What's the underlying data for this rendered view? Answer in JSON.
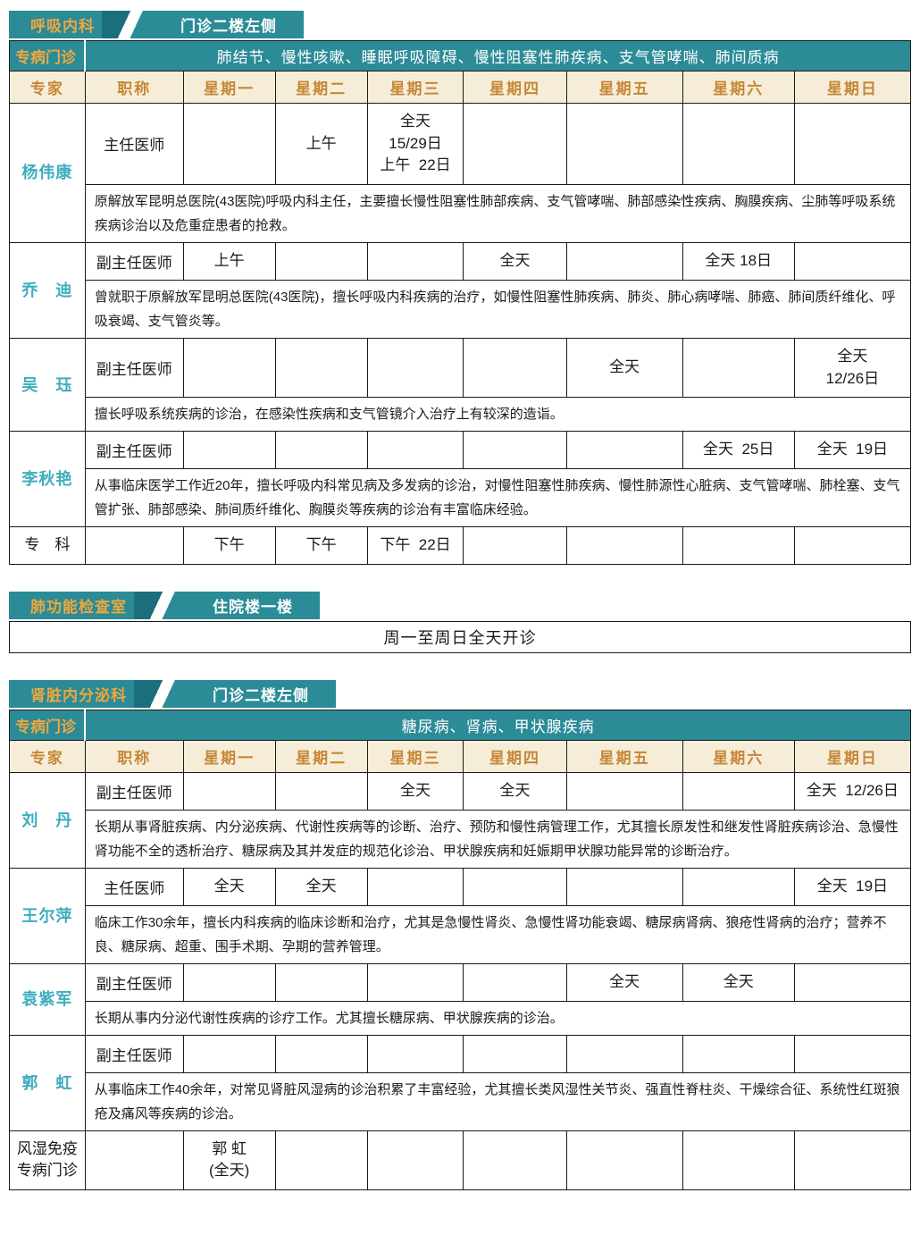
{
  "colors": {
    "teal": "#2b8b97",
    "teal_dark": "#1b6e7b",
    "gold_on_teal": "#efa73f",
    "gold_on_cream": "#c68737",
    "cream_header": "#f6edd9",
    "doctor_name_teal": "#3eadbd",
    "border": "#1a1a1a"
  },
  "sections": [
    {
      "type": "schedule",
      "tab": {
        "department": "呼吸内科",
        "location": "门诊二楼左侧"
      },
      "special_clinic": {
        "label": "专病门诊",
        "text": "肺结节、慢性咳嗽、睡眠呼吸障碍、慢性阻塞性肺疾病、支气管哮喘、肺间质病"
      },
      "columns": [
        "专家",
        "职称",
        "星期一",
        "星期二",
        "星期三",
        "星期四",
        "星期五",
        "星期六",
        "星期日"
      ],
      "rows": [
        {
          "name": "杨伟康",
          "title": "主任医师",
          "days": [
            "",
            "上午",
            "全天\n15/29日\n上午  22日",
            "",
            "",
            "",
            ""
          ],
          "bio": "原解放军昆明总医院(43医院)呼吸内科主任，主要擅长慢性阻塞性肺部疾病、支气管哮喘、肺部感染性疾病、胸膜疾病、尘肺等呼吸系统疾病诊治以及危重症患者的抢救。"
        },
        {
          "name": "乔　迪",
          "title": "副主任医师",
          "days": [
            "上午",
            "",
            "",
            "全天",
            "",
            "全天 18日",
            ""
          ],
          "bio": "曾就职于原解放军昆明总医院(43医院)，擅长呼吸内科疾病的治疗，如慢性阻塞性肺疾病、肺炎、肺心病哮喘、肺癌、肺间质纤维化、呼吸衰竭、支气管炎等。"
        },
        {
          "name": "吴　珏",
          "title": "副主任医师",
          "days": [
            "",
            "",
            "",
            "",
            "全天",
            "",
            "全天\n12/26日"
          ],
          "bio": "擅长呼吸系统疾病的诊治，在感染性疾病和支气管镜介入治疗上有较深的造诣。"
        },
        {
          "name": "李秋艳",
          "title": "副主任医师",
          "days": [
            "",
            "",
            "",
            "",
            "",
            "全天  25日",
            "全天  19日"
          ],
          "bio": "从事临床医学工作近20年，擅长呼吸内科常见病及多发病的诊治，对慢性阻塞性肺疾病、慢性肺源性心脏病、支气管哮喘、肺栓塞、支气管扩张、肺部感染、肺间质纤维化、胸膜炎等疾病的诊治有丰富临床经验。"
        },
        {
          "name": "专　科",
          "plain": true,
          "title": "",
          "days": [
            "下午",
            "下午",
            "下午  22日",
            "",
            "",
            "",
            ""
          ],
          "bio": null
        }
      ]
    },
    {
      "type": "notice",
      "tab": {
        "department": "肺功能检查室",
        "location": "住院楼一楼"
      },
      "notice": "周一至周日全天开诊"
    },
    {
      "type": "schedule",
      "tab": {
        "department": "肾脏内分泌科",
        "location": "门诊二楼左侧"
      },
      "special_clinic": {
        "label": "专病门诊",
        "text": "糖尿病、肾病、甲状腺疾病"
      },
      "columns": [
        "专家",
        "职称",
        "星期一",
        "星期二",
        "星期三",
        "星期四",
        "星期五",
        "星期六",
        "星期日"
      ],
      "rows": [
        {
          "name": "刘　丹",
          "title": "副主任医师",
          "days": [
            "",
            "",
            "全天",
            "全天",
            "",
            "",
            "全天  12/26日"
          ],
          "bio": "长期从事肾脏疾病、内分泌疾病、代谢性疾病等的诊断、治疗、预防和慢性病管理工作，尤其擅长原发性和继发性肾脏疾病诊治、急慢性肾功能不全的透析治疗、糖尿病及其并发症的规范化诊治、甲状腺疾病和妊娠期甲状腺功能异常的诊断治疗。"
        },
        {
          "name": "王尔萍",
          "title": "主任医师",
          "days": [
            "全天",
            "全天",
            "",
            "",
            "",
            "",
            "全天  19日"
          ],
          "bio": "临床工作30余年，擅长内科疾病的临床诊断和治疗，尤其是急慢性肾炎、急慢性肾功能衰竭、糖尿病肾病、狼疮性肾病的治疗；营养不良、糖尿病、超重、围手术期、孕期的营养管理。"
        },
        {
          "name": "袁紫军",
          "title": "副主任医师",
          "days": [
            "",
            "",
            "",
            "",
            "全天",
            "全天",
            ""
          ],
          "bio": "长期从事内分泌代谢性疾病的诊疗工作。尤其擅长糖尿病、甲状腺疾病的诊治。"
        },
        {
          "name": "郭　虹",
          "title": "副主任医师",
          "days": [
            "",
            "",
            "",
            "",
            "",
            "",
            ""
          ],
          "bio": "从事临床工作40余年，对常见肾脏风湿病的诊治积累了丰富经验，尤其擅长类风湿性关节炎、强直性脊柱炎、干燥综合征、系统性红斑狼疮及痛风等疾病的诊治。"
        },
        {
          "name": "风湿免疫\n专病门诊",
          "plain": true,
          "title": "",
          "days": [
            "郭 虹\n(全天)",
            "",
            "",
            "",
            "",
            "",
            ""
          ],
          "bio": null
        }
      ]
    }
  ]
}
